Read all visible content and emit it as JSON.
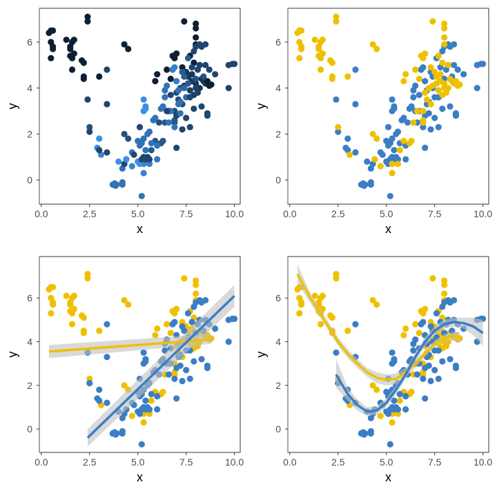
{
  "chart_data": [
    {
      "type": "scatter",
      "panel": "top-left",
      "color_mode": "continuous",
      "color_scale": [
        "#3d8fe0",
        "#0f1f33"
      ],
      "xlabel": "x",
      "ylabel": "y",
      "xlim": [
        -0.1,
        10.3
      ],
      "ylim": [
        -1.05,
        7.47
      ],
      "xticks": [
        "0.0",
        "2.5",
        "5.0",
        "7.5",
        "10.0"
      ],
      "yticks": [
        "0",
        "2",
        "4",
        "6"
      ],
      "grid": false,
      "legend": "none"
    },
    {
      "type": "scatter",
      "panel": "top-right",
      "color_mode": "group",
      "xlabel": "x",
      "ylabel": "y",
      "xlim": [
        -0.1,
        10.3
      ],
      "ylim": [
        -1.05,
        7.47
      ],
      "xticks": [
        "0.0",
        "2.5",
        "5.0",
        "7.5",
        "10.0"
      ],
      "yticks": [
        "0",
        "2",
        "4",
        "6"
      ],
      "grid": false,
      "legend": "none"
    },
    {
      "type": "scatter",
      "panel": "bottom-left",
      "color_mode": "group",
      "fit": "linear",
      "xlabel": "x",
      "ylabel": "y",
      "xlim": [
        -0.1,
        10.3
      ],
      "ylim": [
        -1.07,
        7.9
      ],
      "xticks": [
        "0.0",
        "2.5",
        "5.0",
        "7.5",
        "10.0"
      ],
      "yticks": [
        "0",
        "2",
        "4",
        "6"
      ],
      "grid": false,
      "legend": "none",
      "fits": [
        {
          "group": "A",
          "x": [
            0.4,
            8.8
          ],
          "y": [
            3.55,
            4.1
          ],
          "lo": [
            3.25,
            3.9
          ],
          "hi": [
            3.85,
            4.35
          ]
        },
        {
          "group": "B",
          "x": [
            2.4,
            10.0
          ],
          "y": [
            -0.4,
            6.1
          ],
          "lo": [
            -0.8,
            5.6
          ],
          "hi": [
            0.0,
            6.6
          ]
        }
      ]
    },
    {
      "type": "scatter",
      "panel": "bottom-right",
      "color_mode": "group",
      "fit": "loess",
      "xlabel": "x",
      "ylabel": "y",
      "xlim": [
        -0.1,
        10.3
      ],
      "ylim": [
        -1.07,
        7.9
      ],
      "xticks": [
        "0.0",
        "2.5",
        "5.0",
        "7.5",
        "10.0"
      ],
      "yticks": [
        "0",
        "2",
        "4",
        "6"
      ],
      "grid": false,
      "legend": "none",
      "fits": [
        {
          "group": "A",
          "x": [
            0.4,
            1.0,
            1.5,
            2.0,
            2.5,
            3.0,
            3.5,
            4.0,
            4.5,
            5.0,
            5.5,
            6.0,
            6.5,
            7.0,
            7.5,
            8.0,
            8.5,
            8.8
          ],
          "y": [
            7.1,
            6.1,
            5.4,
            4.7,
            4.0,
            3.45,
            3.0,
            2.6,
            2.35,
            2.25,
            2.3,
            2.6,
            3.0,
            3.45,
            3.9,
            4.2,
            4.25,
            4.2
          ],
          "lo": [
            6.7,
            5.85,
            5.2,
            4.5,
            3.8,
            3.25,
            2.8,
            2.4,
            2.1,
            2.0,
            2.05,
            2.4,
            2.8,
            3.3,
            3.75,
            4.05,
            4.05,
            3.95
          ],
          "hi": [
            7.55,
            6.35,
            5.6,
            4.9,
            4.2,
            3.65,
            3.2,
            2.8,
            2.6,
            2.5,
            2.55,
            2.8,
            3.2,
            3.6,
            4.05,
            4.35,
            4.45,
            4.45
          ]
        },
        {
          "group": "B",
          "x": [
            2.4,
            3.0,
            3.5,
            4.0,
            4.5,
            5.0,
            5.5,
            6.0,
            6.5,
            7.0,
            7.5,
            8.0,
            8.5,
            9.0,
            9.5,
            10.0
          ],
          "y": [
            2.5,
            1.6,
            1.1,
            0.8,
            0.85,
            1.2,
            1.8,
            2.5,
            3.3,
            4.0,
            4.5,
            4.8,
            4.9,
            4.85,
            4.7,
            4.4
          ],
          "lo": [
            1.9,
            1.3,
            0.85,
            0.6,
            0.65,
            1.0,
            1.6,
            2.3,
            3.1,
            3.8,
            4.3,
            4.6,
            4.7,
            4.6,
            4.3,
            3.8
          ],
          "hi": [
            3.2,
            1.9,
            1.35,
            1.0,
            1.05,
            1.4,
            2.0,
            2.7,
            3.5,
            4.2,
            4.7,
            5.0,
            5.1,
            5.1,
            5.1,
            5.0
          ]
        }
      ]
    }
  ],
  "groups": {
    "A": "#EFC000",
    "B": "#3B7EC4"
  },
  "band_color": "#bfbfbf",
  "point_fields": [
    "x",
    "y",
    "group",
    "color_value"
  ],
  "points": [
    [
      0.4,
      6.4,
      "A",
      0
    ],
    [
      0.5,
      6.5,
      "A",
      0
    ],
    [
      0.6,
      6.5,
      "A",
      0
    ],
    [
      0.5,
      6.0,
      "A",
      0
    ],
    [
      0.6,
      5.8,
      "A",
      0
    ],
    [
      0.6,
      5.7,
      "A",
      0
    ],
    [
      0.5,
      5.3,
      "A",
      0
    ],
    [
      1.3,
      6.1,
      "A",
      0
    ],
    [
      1.5,
      5.8,
      "A",
      0
    ],
    [
      1.5,
      5.7,
      "A",
      0
    ],
    [
      1.6,
      6.0,
      "A",
      0
    ],
    [
      1.7,
      6.1,
      "A",
      0
    ],
    [
      1.5,
      5.4,
      "A",
      0
    ],
    [
      1.6,
      5.3,
      "A",
      0
    ],
    [
      1.7,
      5.5,
      "A",
      0
    ],
    [
      1.6,
      4.8,
      "A",
      0
    ],
    [
      2.1,
      5.2,
      "A",
      0
    ],
    [
      2.2,
      5.1,
      "A",
      0
    ],
    [
      2.2,
      4.5,
      "A",
      0
    ],
    [
      2.2,
      4.4,
      "A",
      0
    ],
    [
      2.4,
      7.1,
      "A",
      0
    ],
    [
      2.4,
      6.9,
      "A",
      0
    ],
    [
      3.0,
      4.5,
      "A",
      0
    ],
    [
      2.5,
      2.3,
      "A",
      0.35
    ],
    [
      3.1,
      1.1,
      "A",
      0.8
    ],
    [
      4.3,
      5.9,
      "A",
      0
    ],
    [
      4.5,
      5.7,
      "A",
      0
    ],
    [
      4.3,
      2.0,
      "A",
      0.35
    ],
    [
      4.5,
      1.8,
      "A",
      0.35
    ],
    [
      4.4,
      0.9,
      "A",
      0.8
    ],
    [
      4.7,
      0.6,
      "A",
      0.8
    ],
    [
      5.3,
      0.3,
      "A",
      0.8
    ],
    [
      5.3,
      0.7,
      "A",
      0.8
    ],
    [
      5.6,
      0.7,
      "A",
      0.8
    ],
    [
      5.7,
      1.3,
      "A",
      0.4
    ],
    [
      5.9,
      1.7,
      "A",
      0.4
    ],
    [
      6.2,
      1.6,
      "A",
      0.4
    ],
    [
      6.3,
      1.7,
      "A",
      0.4
    ],
    [
      6.4,
      2.5,
      "A",
      0.4
    ],
    [
      5.9,
      4.3,
      "A",
      0
    ],
    [
      6.0,
      4.6,
      "A",
      0
    ],
    [
      6.5,
      4.8,
      "A",
      0
    ],
    [
      6.7,
      4.4,
      "A",
      0
    ],
    [
      6.8,
      5.4,
      "A",
      0
    ],
    [
      6.9,
      5.3,
      "A",
      0
    ],
    [
      7.0,
      5.5,
      "A",
      0
    ],
    [
      7.3,
      4.9,
      "A",
      0
    ],
    [
      7.4,
      6.9,
      "A",
      0
    ],
    [
      8.0,
      6.8,
      "A",
      0
    ],
    [
      8.0,
      6.6,
      "A",
      0
    ],
    [
      8.0,
      6.2,
      "A",
      0
    ],
    [
      8.0,
      5.9,
      "A",
      0
    ],
    [
      7.7,
      5.4,
      "A",
      0
    ],
    [
      7.9,
      5.1,
      "A",
      0
    ],
    [
      8.2,
      5.0,
      "A",
      0
    ],
    [
      7.5,
      4.7,
      "A",
      0.1
    ],
    [
      7.6,
      4.5,
      "A",
      0.1
    ],
    [
      7.8,
      4.3,
      "A",
      0.1
    ],
    [
      8.0,
      4.2,
      "A",
      0.1
    ],
    [
      8.2,
      4.0,
      "A",
      0.1
    ],
    [
      8.3,
      4.4,
      "A",
      0.1
    ],
    [
      8.5,
      4.2,
      "A",
      0.1
    ],
    [
      8.7,
      4.1,
      "A",
      0
    ],
    [
      8.8,
      4.15,
      "A",
      0
    ],
    [
      7.2,
      4.0,
      "A",
      0.3
    ],
    [
      7.0,
      3.8,
      "A",
      0.3
    ],
    [
      7.1,
      3.5,
      "A",
      0.3
    ],
    [
      7.3,
      3.3,
      "A",
      0.3
    ],
    [
      6.9,
      3.0,
      "A",
      0.3
    ],
    [
      6.9,
      2.5,
      "A",
      0.4
    ],
    [
      6.9,
      2.6,
      "A",
      0.4
    ],
    [
      7.4,
      4.1,
      "A",
      0.2
    ],
    [
      7.7,
      3.9,
      "A",
      0.2
    ],
    [
      7.9,
      3.7,
      "A",
      0.2
    ],
    [
      8.1,
      3.8,
      "A",
      0.2
    ],
    [
      8.4,
      4.3,
      "A",
      0.1
    ],
    [
      7.6,
      4.2,
      "A",
      0.2
    ],
    [
      7.8,
      4.6,
      "A",
      0.1
    ],
    [
      8.6,
      4.3,
      "A",
      0
    ],
    [
      8.0,
      4.0,
      "A",
      0.2
    ],
    [
      6.6,
      3.0,
      "A",
      0
    ],
    [
      2.4,
      3.5,
      "B",
      0
    ],
    [
      2.5,
      2.1,
      "B",
      0
    ],
    [
      3.0,
      1.8,
      "B",
      0.9
    ],
    [
      2.9,
      1.4,
      "B",
      0.9
    ],
    [
      3.0,
      1.3,
      "B",
      0
    ],
    [
      3.4,
      1.2,
      "B",
      0
    ],
    [
      3.4,
      4.8,
      "B",
      0
    ],
    [
      3.4,
      3.3,
      "B",
      0
    ],
    [
      3.7,
      -0.2,
      "B",
      0.4
    ],
    [
      3.8,
      -0.15,
      "B",
      0.4
    ],
    [
      3.9,
      -0.2,
      "B",
      0.4
    ],
    [
      3.85,
      -0.25,
      "B",
      0.4
    ],
    [
      4.2,
      -0.1,
      "B",
      0.4
    ],
    [
      4.2,
      -0.2,
      "B",
      0.4
    ],
    [
      4.2,
      0.5,
      "B",
      0.4
    ],
    [
      4.0,
      0.8,
      "B",
      0.9
    ],
    [
      4.3,
      0.7,
      "B",
      0
    ],
    [
      4.4,
      0.9,
      "B",
      0.9
    ],
    [
      4.7,
      1.2,
      "B",
      0.4
    ],
    [
      4.8,
      1.1,
      "B",
      0
    ],
    [
      5.0,
      0.8,
      "B",
      0.9
    ],
    [
      5.1,
      0.7,
      "B",
      0.9
    ],
    [
      5.2,
      0.9,
      "B",
      0
    ],
    [
      5.2,
      -0.7,
      "B",
      0.4
    ],
    [
      5.3,
      1.0,
      "B",
      0
    ],
    [
      5.4,
      0.9,
      "B",
      0
    ],
    [
      5.5,
      1.0,
      "B",
      0
    ],
    [
      5.6,
      0.9,
      "B",
      0
    ],
    [
      5.1,
      2.3,
      "B",
      0
    ],
    [
      5.0,
      1.7,
      "B",
      0.4
    ],
    [
      5.1,
      1.5,
      "B",
      0.4
    ],
    [
      5.2,
      1.6,
      "B",
      0.4
    ],
    [
      5.3,
      1.8,
      "B",
      0.4
    ],
    [
      5.4,
      1.3,
      "B",
      0.4
    ],
    [
      5.3,
      3.5,
      "B",
      0.9
    ],
    [
      5.4,
      3.2,
      "B",
      0.9
    ],
    [
      5.3,
      3.0,
      "B",
      0.9
    ],
    [
      5.4,
      3.1,
      "B",
      0.9
    ],
    [
      5.5,
      2.0,
      "B",
      0.4
    ],
    [
      5.6,
      2.1,
      "B",
      0.4
    ],
    [
      5.7,
      1.6,
      "B",
      0.4
    ],
    [
      5.8,
      2.6,
      "B",
      0.4
    ],
    [
      5.9,
      2.7,
      "B",
      0.4
    ],
    [
      6.0,
      1.5,
      "B",
      0.4
    ],
    [
      6.0,
      0.9,
      "B",
      0.45
    ],
    [
      6.1,
      2.5,
      "B",
      0.1
    ],
    [
      6.2,
      3.1,
      "B",
      0.4
    ],
    [
      6.3,
      3.2,
      "B",
      0.4
    ],
    [
      6.4,
      3.6,
      "B",
      0.4
    ],
    [
      6.4,
      3.9,
      "B",
      0.4
    ],
    [
      6.5,
      4.1,
      "B",
      0.4
    ],
    [
      6.6,
      2.5,
      "B",
      0.4
    ],
    [
      6.7,
      3.0,
      "B",
      0.4
    ],
    [
      6.5,
      3.0,
      "B",
      0
    ],
    [
      6.7,
      3.7,
      "B",
      0
    ],
    [
      6.8,
      4.8,
      "B",
      0.5
    ],
    [
      6.9,
      4.9,
      "B",
      0.5
    ],
    [
      6.9,
      2.3,
      "B",
      0.4
    ],
    [
      7.0,
      4.3,
      "B",
      0.5
    ],
    [
      7.0,
      1.4,
      "B",
      0
    ],
    [
      7.0,
      2.8,
      "B",
      0
    ],
    [
      7.1,
      3.3,
      "B",
      0.4
    ],
    [
      7.1,
      3.9,
      "B",
      0.4
    ],
    [
      7.2,
      2.9,
      "B",
      0.4
    ],
    [
      7.2,
      3.4,
      "B",
      0.4
    ],
    [
      7.3,
      2.2,
      "B",
      0
    ],
    [
      7.3,
      4.7,
      "B",
      0.2
    ],
    [
      7.4,
      4.0,
      "B",
      0.3
    ],
    [
      7.5,
      3.6,
      "B",
      0.3
    ],
    [
      7.5,
      2.7,
      "B",
      0
    ],
    [
      7.6,
      5.3,
      "B",
      0.2
    ],
    [
      7.7,
      2.3,
      "B",
      0
    ],
    [
      7.7,
      3.6,
      "B",
      0
    ],
    [
      7.8,
      4.9,
      "B",
      0
    ],
    [
      7.9,
      3.1,
      "B",
      0
    ],
    [
      7.9,
      5.6,
      "B",
      0
    ],
    [
      8.0,
      5.8,
      "B",
      0
    ],
    [
      8.2,
      5.9,
      "B",
      0
    ],
    [
      8.3,
      5.8,
      "B",
      0
    ],
    [
      8.5,
      5.9,
      "B",
      0
    ],
    [
      8.1,
      4.8,
      "B",
      0
    ],
    [
      8.2,
      5.0,
      "B",
      0
    ],
    [
      8.3,
      3.2,
      "B",
      0
    ],
    [
      8.5,
      5.0,
      "B",
      0
    ],
    [
      8.6,
      2.9,
      "B",
      0
    ],
    [
      8.6,
      2.8,
      "B",
      0
    ],
    [
      8.7,
      4.8,
      "B",
      0
    ],
    [
      9.0,
      4.6,
      "B",
      0
    ],
    [
      9.7,
      4.0,
      "B",
      0
    ],
    [
      9.7,
      5.0,
      "B",
      0
    ],
    [
      9.9,
      5.05,
      "B",
      0
    ],
    [
      10.0,
      5.05,
      "B",
      0
    ],
    [
      7.4,
      4.5,
      "B",
      0.2
    ],
    [
      7.6,
      4.2,
      "B",
      0.2
    ],
    [
      8.0,
      4.4,
      "B",
      0.1
    ],
    [
      8.4,
      4.5,
      "B",
      0.1
    ]
  ]
}
